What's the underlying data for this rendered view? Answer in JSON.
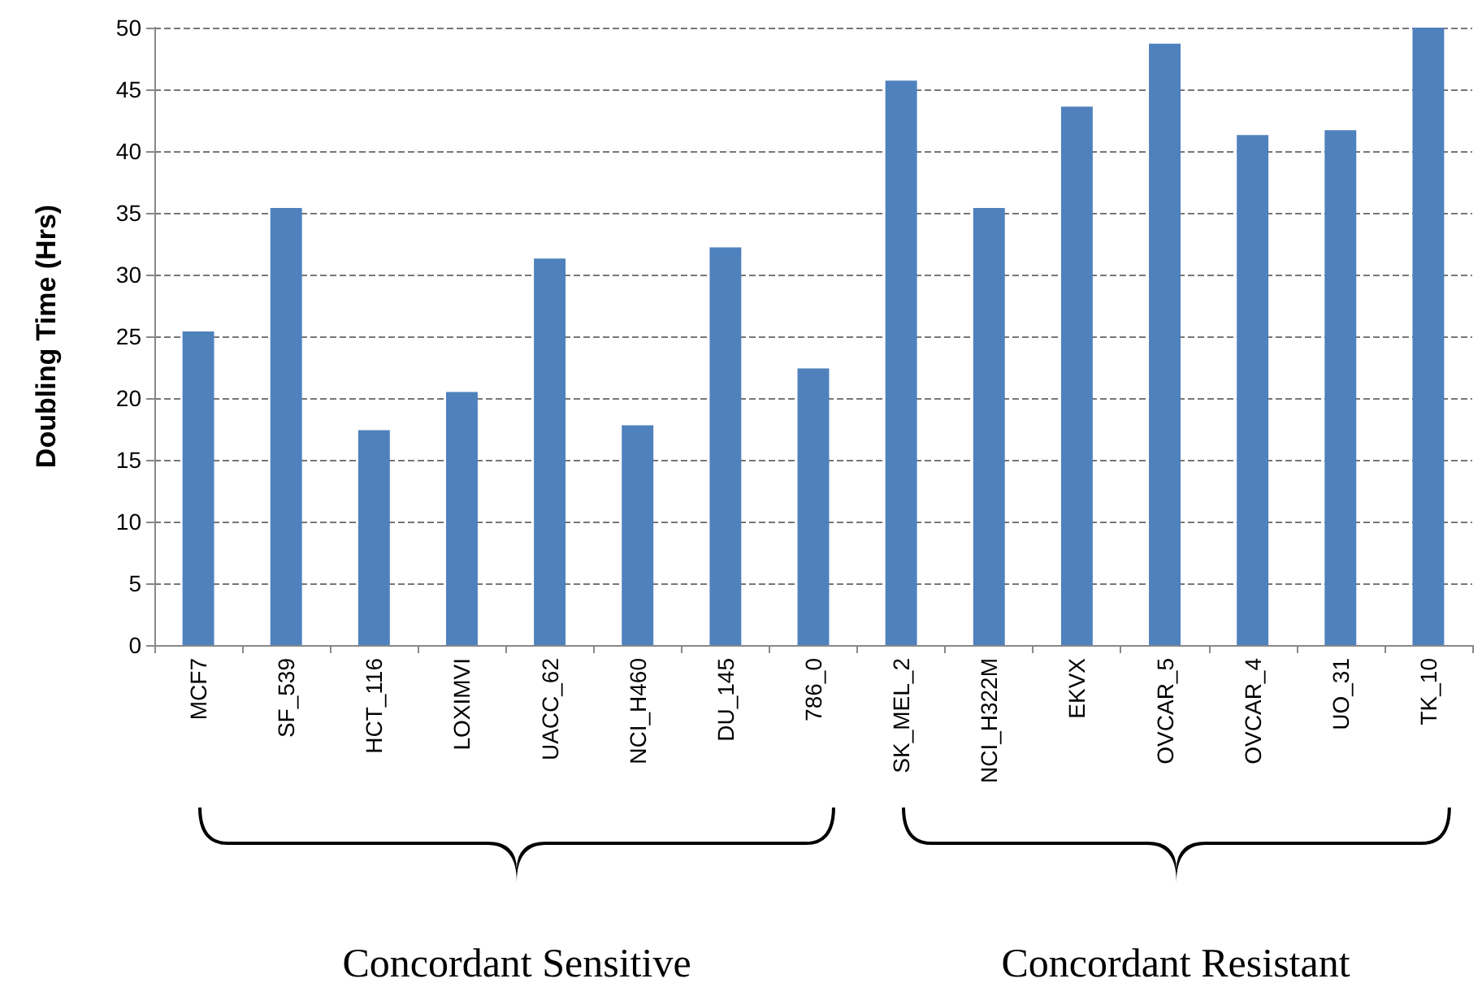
{
  "chart_data": {
    "type": "bar",
    "ylabel": "Doubling Time (Hrs)",
    "categories": [
      "MCF7",
      "SF_539",
      "HCT_116",
      "LOXIMVI",
      "UACC_62",
      "NCI_H460",
      "DU_145",
      "786_0",
      "SK_MEL_2",
      "NCI_H322M",
      "EKVX",
      "OVCAR_5",
      "OVCAR_4",
      "UO_31",
      "TK_10"
    ],
    "values": [
      25.4,
      35.4,
      17.4,
      20.5,
      31.3,
      17.8,
      32.2,
      22.4,
      45.7,
      35.4,
      43.6,
      48.7,
      41.3,
      41.7,
      50
    ],
    "color": "#4f81bd",
    "ylim": [
      0,
      50
    ],
    "yticks": [
      0,
      5,
      10,
      15,
      20,
      25,
      30,
      35,
      40,
      45,
      50
    ],
    "grid": "y",
    "annotations": [
      "Concordant Sensitive",
      "Concordant Resistant"
    ]
  }
}
